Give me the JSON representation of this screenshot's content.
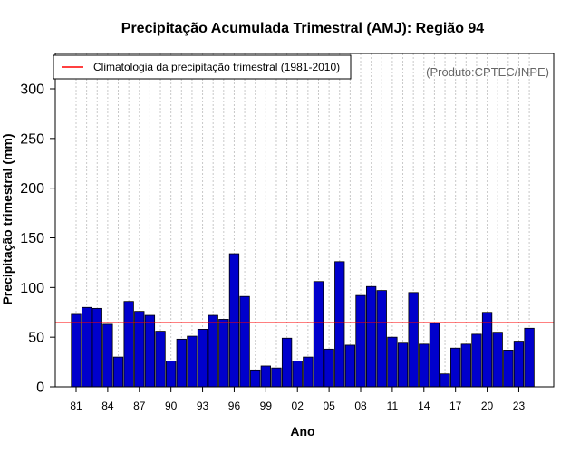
{
  "chart_data": {
    "type": "bar",
    "title": "Precipitação Acumulada Trimestral (AMJ): Região 94",
    "xlabel": "Ano",
    "ylabel": "Precipitação trimestral (mm)",
    "credit": "(Produto:CPTEC/INPE)",
    "ylim": [
      0,
      330
    ],
    "yticks": [
      0,
      50,
      100,
      150,
      200,
      250,
      300
    ],
    "grid": "vertical-dotted",
    "legend_position": "top-left",
    "bar_color": "#0000cc",
    "climatology_color": "#ff0000",
    "years": [
      1981,
      1982,
      1983,
      1984,
      1985,
      1986,
      1987,
      1988,
      1989,
      1990,
      1991,
      1992,
      1993,
      1994,
      1995,
      1996,
      1997,
      1998,
      1999,
      2000,
      2001,
      2002,
      2003,
      2004,
      2005,
      2006,
      2007,
      2008,
      2009,
      2010,
      2011,
      2012,
      2013,
      2014,
      2015,
      2016,
      2017,
      2018,
      2019,
      2020,
      2021,
      2022,
      2023,
      2024
    ],
    "values": [
      73,
      80,
      79,
      63,
      30,
      86,
      76,
      72,
      56,
      26,
      48,
      51,
      58,
      72,
      68,
      134,
      91,
      17,
      21,
      19,
      49,
      26,
      30,
      106,
      38,
      126,
      42,
      92,
      101,
      97,
      50,
      44,
      95,
      43,
      64,
      13,
      39,
      43,
      53,
      75,
      55,
      37,
      46,
      59
    ],
    "xtick_labels": [
      {
        "year": 1981,
        "label": "81"
      },
      {
        "year": 1984,
        "label": "84"
      },
      {
        "year": 1987,
        "label": "87"
      },
      {
        "year": 1990,
        "label": "90"
      },
      {
        "year": 1993,
        "label": "93"
      },
      {
        "year": 1996,
        "label": "96"
      },
      {
        "year": 1999,
        "label": "99"
      },
      {
        "year": 2002,
        "label": "02"
      },
      {
        "year": 2005,
        "label": "05"
      },
      {
        "year": 2008,
        "label": "08"
      },
      {
        "year": 2011,
        "label": "11"
      },
      {
        "year": 2014,
        "label": "14"
      },
      {
        "year": 2017,
        "label": "17"
      },
      {
        "year": 2020,
        "label": "20"
      },
      {
        "year": 2023,
        "label": "23"
      }
    ],
    "climatology": {
      "label": "Climatologia da precipitação trimestral (1981-2010)",
      "value": 64.5
    }
  }
}
